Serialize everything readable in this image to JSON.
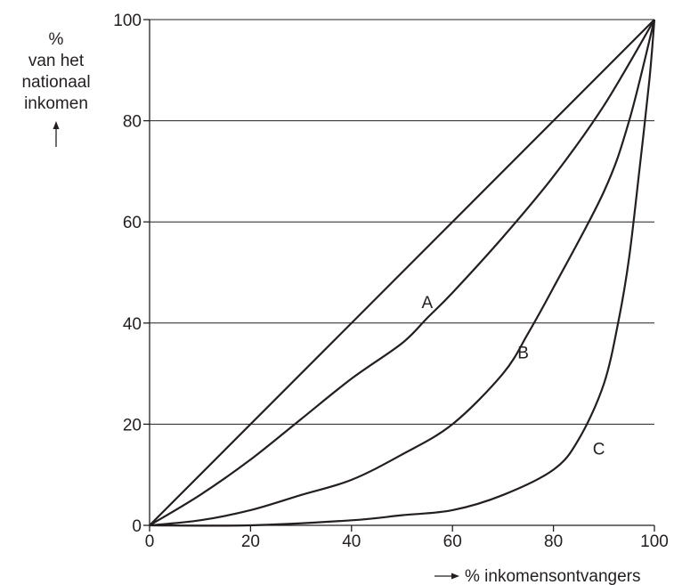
{
  "chart_data": {
    "type": "line",
    "title": "",
    "xlabel": "% inkomensontvangers",
    "ylabel_lines": [
      "%",
      "van het",
      "nationaal",
      "inkomen"
    ],
    "xlim": [
      0,
      100
    ],
    "ylim": [
      0,
      100
    ],
    "x_ticks": [
      0,
      20,
      40,
      60,
      80,
      100
    ],
    "y_ticks": [
      0,
      20,
      40,
      60,
      80,
      100
    ],
    "grid": "horizontal",
    "series": [
      {
        "label": "",
        "x": [
          0,
          100
        ],
        "y": [
          0,
          100
        ]
      },
      {
        "label": "A",
        "x": [
          0,
          10,
          20,
          30,
          40,
          50,
          55,
          60,
          70,
          80,
          90,
          100
        ],
        "y": [
          0,
          6,
          13,
          21,
          29,
          36,
          41,
          46,
          57,
          69,
          83,
          100
        ]
      },
      {
        "label": "B",
        "x": [
          0,
          10,
          20,
          30,
          40,
          50,
          60,
          70,
          75,
          80,
          90,
          95,
          100
        ],
        "y": [
          0,
          1,
          3,
          6,
          9,
          14,
          20,
          30,
          38,
          47,
          66,
          80,
          100
        ]
      },
      {
        "label": "C",
        "x": [
          0,
          20,
          40,
          50,
          60,
          70,
          80,
          85,
          90,
          93,
          95,
          97,
          99,
          100
        ],
        "y": [
          0,
          0,
          1,
          2,
          3,
          6,
          11,
          17,
          28,
          41,
          53,
          70,
          88,
          100
        ]
      }
    ],
    "annotations": [
      {
        "text": "A",
        "x": 55,
        "y": 43
      },
      {
        "text": "B",
        "x": 74,
        "y": 33
      },
      {
        "text": "C",
        "x": 89,
        "y": 14
      }
    ]
  }
}
